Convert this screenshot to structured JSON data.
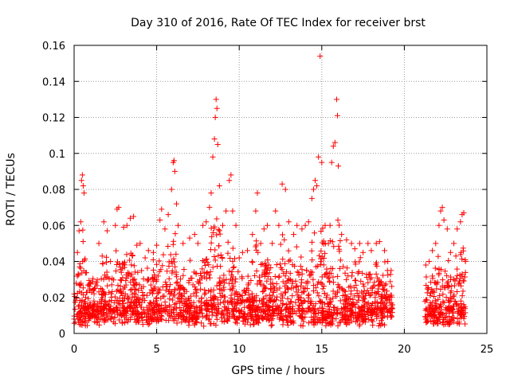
{
  "chart_data": {
    "type": "scatter",
    "title": "Day 310 of 2016, Rate Of TEC Index for receiver brst",
    "xlabel": "GPS time / hours",
    "ylabel": "ROTI / TECUs",
    "xlim": [
      0,
      25
    ],
    "ylim": [
      0,
      0.16
    ],
    "xticks": [
      0,
      5,
      10,
      15,
      20,
      25
    ],
    "xtick_labels": [
      "0",
      "5",
      "10",
      "15",
      "20",
      "25"
    ],
    "yticks": [
      0,
      0.02,
      0.04,
      0.06,
      0.08,
      0.1,
      0.12,
      0.14,
      0.16
    ],
    "ytick_labels": [
      "0",
      "0.02",
      "0.04",
      "0.06",
      "0.08",
      "0.1",
      "0.12",
      "0.14",
      "0.16"
    ],
    "grid": true,
    "marker": "+",
    "marker_color": "#ff0000",
    "data_gap_hours": [
      19.3,
      21.2
    ],
    "series": [
      {
        "points": [
          [
            0.0,
            0.008
          ],
          [
            0.2,
            0.045
          ],
          [
            0.3,
            0.057
          ],
          [
            0.4,
            0.062
          ],
          [
            0.45,
            0.085
          ],
          [
            0.5,
            0.088
          ],
          [
            0.55,
            0.082
          ],
          [
            0.6,
            0.078
          ],
          [
            0.7,
            0.02
          ],
          [
            0.8,
            0.015
          ],
          [
            1.0,
            0.01
          ],
          [
            1.2,
            0.018
          ],
          [
            1.5,
            0.05
          ],
          [
            1.7,
            0.043
          ],
          [
            1.8,
            0.062
          ],
          [
            2.0,
            0.057
          ],
          [
            2.2,
            0.04
          ],
          [
            2.5,
            0.06
          ],
          [
            2.6,
            0.069
          ],
          [
            2.7,
            0.07
          ],
          [
            3.0,
            0.059
          ],
          [
            3.2,
            0.06
          ],
          [
            3.4,
            0.064
          ],
          [
            3.6,
            0.065
          ],
          [
            3.8,
            0.049
          ],
          [
            4.0,
            0.05
          ],
          [
            4.3,
            0.042
          ],
          [
            4.5,
            0.046
          ],
          [
            4.8,
            0.045
          ],
          [
            5.0,
            0.049
          ],
          [
            5.2,
            0.063
          ],
          [
            5.3,
            0.069
          ],
          [
            5.5,
            0.058
          ],
          [
            5.7,
            0.066
          ],
          [
            5.9,
            0.08
          ],
          [
            6.0,
            0.095
          ],
          [
            6.05,
            0.096
          ],
          [
            6.1,
            0.09
          ],
          [
            6.2,
            0.072
          ],
          [
            6.3,
            0.06
          ],
          [
            6.6,
            0.05
          ],
          [
            7.0,
            0.053
          ],
          [
            7.3,
            0.055
          ],
          [
            7.5,
            0.05
          ],
          [
            7.8,
            0.06
          ],
          [
            8.0,
            0.062
          ],
          [
            8.2,
            0.07
          ],
          [
            8.3,
            0.078
          ],
          [
            8.4,
            0.098
          ],
          [
            8.5,
            0.108
          ],
          [
            8.55,
            0.12
          ],
          [
            8.6,
            0.13
          ],
          [
            8.65,
            0.125
          ],
          [
            8.7,
            0.105
          ],
          [
            8.8,
            0.082
          ],
          [
            9.0,
            0.06
          ],
          [
            9.2,
            0.068
          ],
          [
            9.4,
            0.085
          ],
          [
            9.5,
            0.088
          ],
          [
            9.6,
            0.068
          ],
          [
            9.8,
            0.06
          ],
          [
            10.0,
            0.042
          ],
          [
            10.2,
            0.045
          ],
          [
            10.5,
            0.046
          ],
          [
            10.8,
            0.055
          ],
          [
            11.0,
            0.068
          ],
          [
            11.1,
            0.078
          ],
          [
            11.3,
            0.05
          ],
          [
            11.5,
            0.058
          ],
          [
            11.7,
            0.06
          ],
          [
            12.0,
            0.05
          ],
          [
            12.2,
            0.068
          ],
          [
            12.4,
            0.06
          ],
          [
            12.6,
            0.083
          ],
          [
            12.8,
            0.08
          ],
          [
            13.0,
            0.062
          ],
          [
            13.3,
            0.055
          ],
          [
            13.5,
            0.06
          ],
          [
            13.8,
            0.058
          ],
          [
            14.0,
            0.06
          ],
          [
            14.2,
            0.062
          ],
          [
            14.4,
            0.075
          ],
          [
            14.5,
            0.08
          ],
          [
            14.6,
            0.085
          ],
          [
            14.7,
            0.082
          ],
          [
            14.8,
            0.098
          ],
          [
            14.9,
            0.154
          ],
          [
            15.0,
            0.095
          ],
          [
            15.2,
            0.06
          ],
          [
            15.4,
            0.05
          ],
          [
            15.5,
            0.06
          ],
          [
            15.6,
            0.095
          ],
          [
            15.7,
            0.104
          ],
          [
            15.8,
            0.106
          ],
          [
            15.9,
            0.13
          ],
          [
            15.95,
            0.121
          ],
          [
            16.0,
            0.093
          ],
          [
            16.2,
            0.055
          ],
          [
            16.5,
            0.052
          ],
          [
            16.8,
            0.05
          ],
          [
            17.0,
            0.047
          ],
          [
            17.3,
            0.05
          ],
          [
            17.5,
            0.045
          ],
          [
            17.8,
            0.05
          ],
          [
            18.0,
            0.046
          ],
          [
            18.3,
            0.05
          ],
          [
            18.5,
            0.051
          ],
          [
            18.8,
            0.046
          ],
          [
            19.0,
            0.04
          ],
          [
            19.2,
            0.035
          ],
          [
            21.3,
            0.038
          ],
          [
            21.5,
            0.04
          ],
          [
            21.7,
            0.046
          ],
          [
            21.9,
            0.05
          ],
          [
            22.1,
            0.06
          ],
          [
            22.2,
            0.068
          ],
          [
            22.3,
            0.07
          ],
          [
            22.4,
            0.063
          ],
          [
            22.6,
            0.058
          ],
          [
            22.8,
            0.045
          ],
          [
            23.0,
            0.05
          ],
          [
            23.2,
            0.058
          ],
          [
            23.4,
            0.062
          ],
          [
            23.5,
            0.066
          ],
          [
            23.6,
            0.067
          ],
          [
            23.7,
            0.04
          ]
        ]
      }
    ]
  }
}
